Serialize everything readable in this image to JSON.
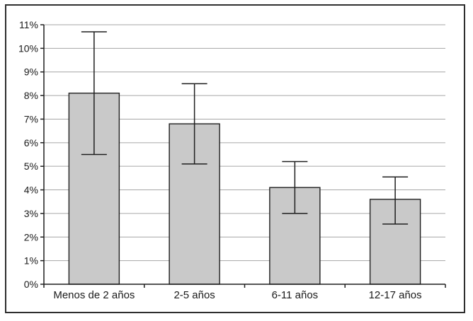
{
  "chart_data": {
    "type": "bar",
    "title": "",
    "xlabel": "",
    "ylabel": "",
    "categories": [
      "Menos de 2 años",
      "2-5 años",
      "6-11 años",
      "12-17 años"
    ],
    "values": [
      8.1,
      6.8,
      4.1,
      3.6
    ],
    "error_low": [
      5.5,
      5.1,
      3.0,
      2.55
    ],
    "error_high": [
      10.7,
      8.5,
      5.2,
      4.55
    ],
    "ylim": [
      0,
      11
    ],
    "ytick_step": 1,
    "ytick_labels": [
      "0%",
      "1%",
      "2%",
      "3%",
      "4%",
      "5%",
      "6%",
      "7%",
      "8%",
      "9%",
      "10%",
      "11%"
    ],
    "grid": true,
    "legend": null,
    "colors": {
      "background": "#ffffff",
      "figure_border": "#2e2e2e",
      "bar_fill": "#c9c9c9",
      "bar_stroke": "#1f1f1f",
      "gridline": "#a6a6a6",
      "axis": "#1f1f1f",
      "error_bar": "#1f1f1f",
      "text": "#1a1a1a"
    }
  }
}
